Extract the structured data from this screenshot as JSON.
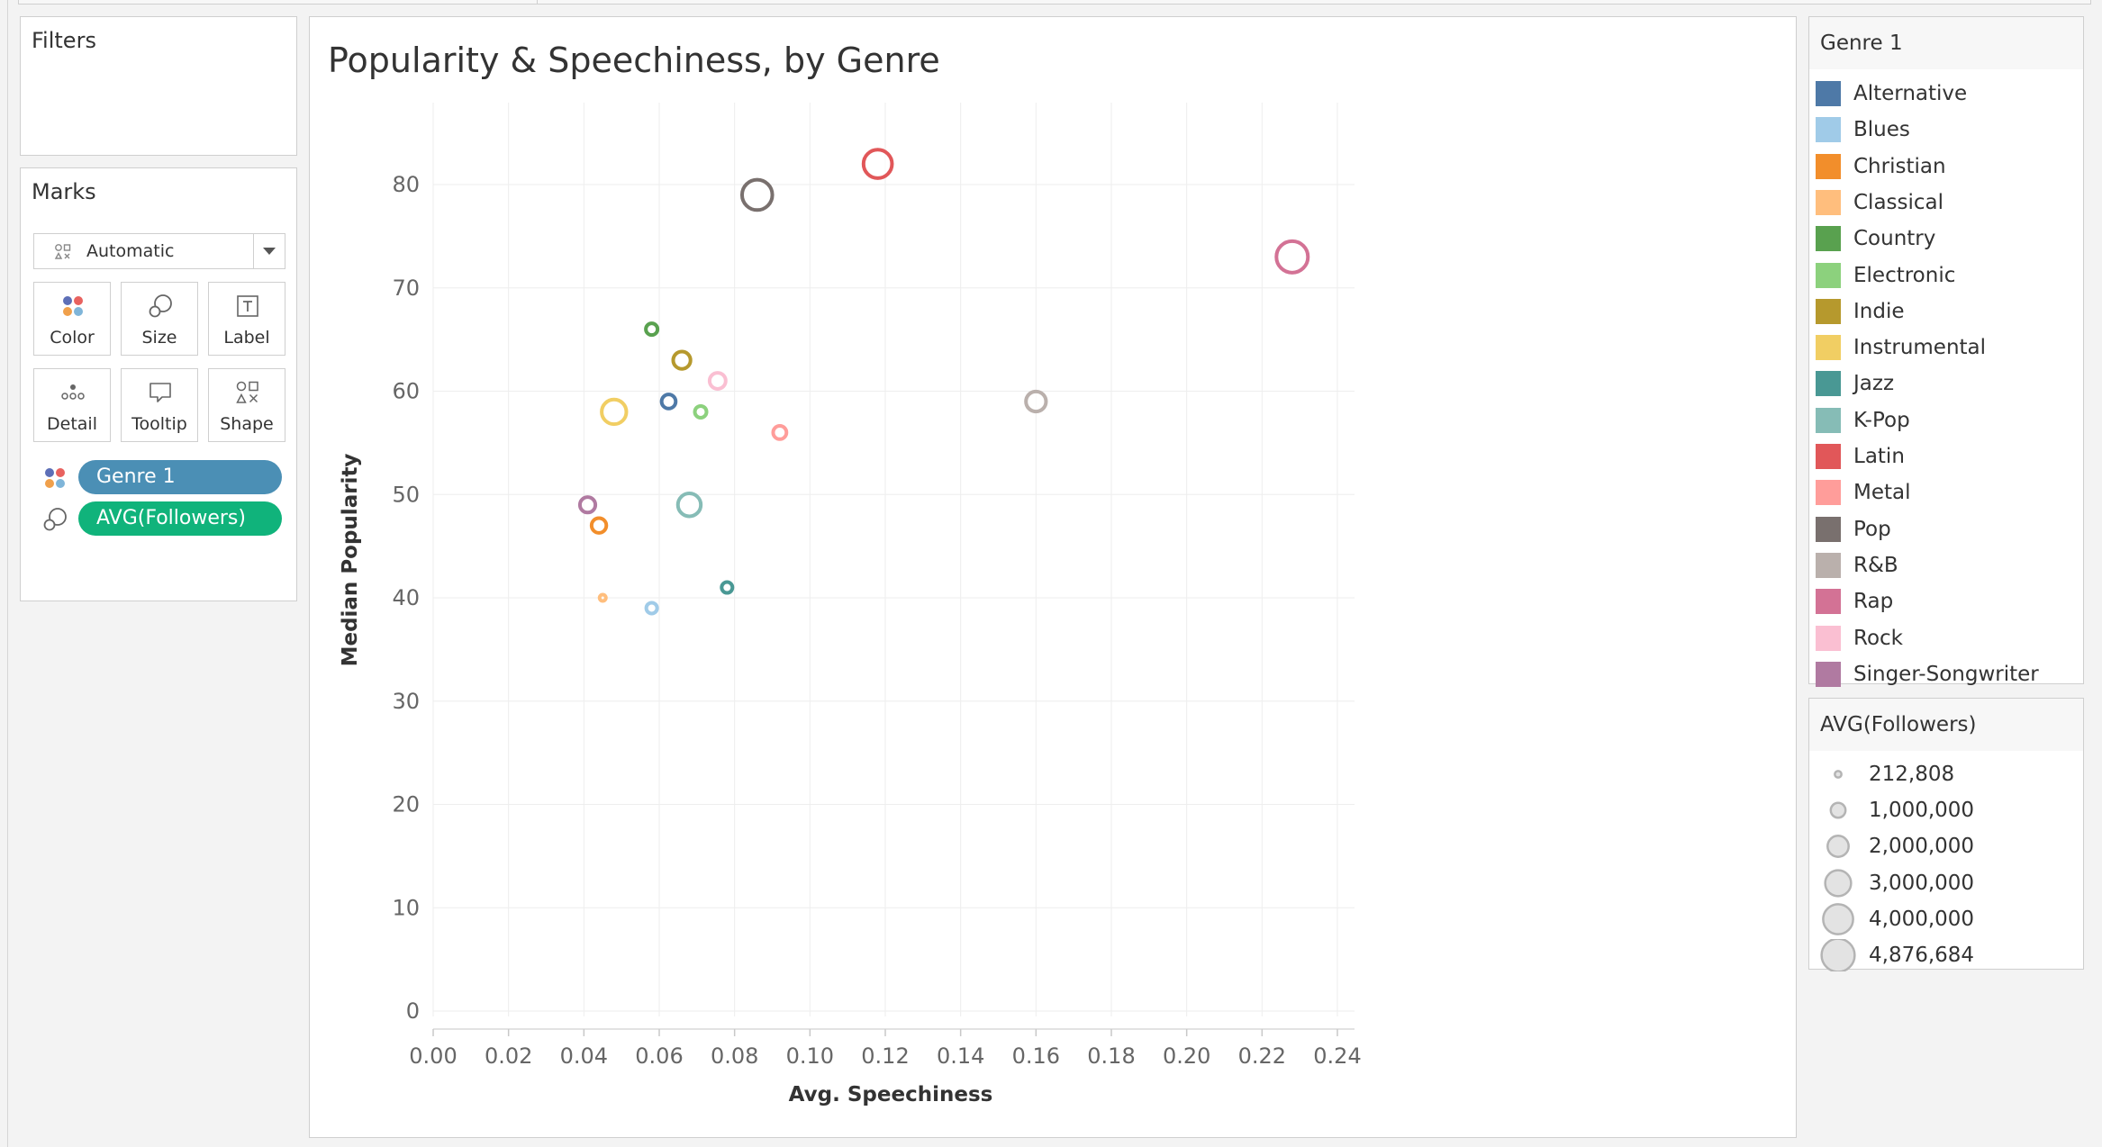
{
  "filters": {
    "title": "Filters"
  },
  "marks": {
    "title": "Marks",
    "mark_type": "Automatic",
    "buttons": [
      {
        "label": "Color",
        "icon": "color-dots-icon"
      },
      {
        "label": "Size",
        "icon": "size-circles-icon"
      },
      {
        "label": "Label",
        "icon": "label-text-icon"
      },
      {
        "label": "Detail",
        "icon": "detail-dots-icon"
      },
      {
        "label": "Tooltip",
        "icon": "tooltip-bubble-icon"
      },
      {
        "label": "Shape",
        "icon": "shape-icon"
      }
    ],
    "pills": [
      {
        "label": "Genre 1",
        "color": "#4b8fb5",
        "icon": "color-dots-icon"
      },
      {
        "label": "AVG(Followers)",
        "color": "#10b37b",
        "icon": "size-circles-icon"
      }
    ]
  },
  "chart_data": {
    "type": "scatter",
    "title": "Popularity & Speechiness, by Genre",
    "xlabel": "Avg. Speechiness",
    "ylabel": "Median Popularity",
    "xlim": [
      0,
      0.24
    ],
    "ylim": [
      0,
      85
    ],
    "x_ticks": [
      "0.00",
      "0.02",
      "0.04",
      "0.06",
      "0.08",
      "0.10",
      "0.12",
      "0.14",
      "0.16",
      "0.18",
      "0.20",
      "0.22",
      "0.24"
    ],
    "y_ticks": [
      "0",
      "10",
      "20",
      "30",
      "40",
      "50",
      "60",
      "70",
      "80"
    ],
    "grid": true,
    "points": [
      {
        "genre": "Alternative",
        "x": 0.0625,
        "y": 59,
        "followers": 1000000,
        "color": "#4e79a7"
      },
      {
        "genre": "Blues",
        "x": 0.058,
        "y": 39,
        "followers": 600000,
        "color": "#a0cbe8"
      },
      {
        "genre": "Christian",
        "x": 0.044,
        "y": 47,
        "followers": 1100000,
        "color": "#f28e2b"
      },
      {
        "genre": "Classical",
        "x": 0.045,
        "y": 40,
        "followers": 212808,
        "color": "#ffbe7d"
      },
      {
        "genre": "Country",
        "x": 0.058,
        "y": 66,
        "followers": 700000,
        "color": "#59a14f"
      },
      {
        "genre": "Electronic",
        "x": 0.071,
        "y": 58,
        "followers": 700000,
        "color": "#8cd17d"
      },
      {
        "genre": "Indie",
        "x": 0.066,
        "y": 63,
        "followers": 1500000,
        "color": "#b6992d"
      },
      {
        "genre": "Instrumental",
        "x": 0.048,
        "y": 58,
        "followers": 3000000,
        "color": "#f1ce63"
      },
      {
        "genre": "Jazz",
        "x": 0.078,
        "y": 41,
        "followers": 600000,
        "color": "#499894"
      },
      {
        "genre": "K-Pop",
        "x": 0.068,
        "y": 49,
        "followers": 2600000,
        "color": "#86bcb6"
      },
      {
        "genre": "Latin",
        "x": 0.118,
        "y": 82,
        "followers": 4000000,
        "color": "#e15759"
      },
      {
        "genre": "Metal",
        "x": 0.092,
        "y": 56,
        "followers": 900000,
        "color": "#ff9d9a"
      },
      {
        "genre": "Pop",
        "x": 0.086,
        "y": 79,
        "followers": 4500000,
        "color": "#79706e"
      },
      {
        "genre": "R&B",
        "x": 0.16,
        "y": 59,
        "followers": 2000000,
        "color": "#bab0ac"
      },
      {
        "genre": "Rap",
        "x": 0.228,
        "y": 73,
        "followers": 4876684,
        "color": "#d37295"
      },
      {
        "genre": "Rock",
        "x": 0.0755,
        "y": 61,
        "followers": 1300000,
        "color": "#fabfd2"
      },
      {
        "genre": "Singer-Songwriter",
        "x": 0.041,
        "y": 49,
        "followers": 1200000,
        "color": "#b07aa1"
      }
    ]
  },
  "genre_legend": {
    "title": "Genre 1",
    "items": [
      {
        "label": "Alternative",
        "color": "#4e79a7"
      },
      {
        "label": "Blues",
        "color": "#a0cbe8"
      },
      {
        "label": "Christian",
        "color": "#f28e2b"
      },
      {
        "label": "Classical",
        "color": "#ffbe7d"
      },
      {
        "label": "Country",
        "color": "#59a14f"
      },
      {
        "label": "Electronic",
        "color": "#8cd17d"
      },
      {
        "label": "Indie",
        "color": "#b6992d"
      },
      {
        "label": "Instrumental",
        "color": "#f1ce63"
      },
      {
        "label": "Jazz",
        "color": "#499894"
      },
      {
        "label": "K-Pop",
        "color": "#86bcb6"
      },
      {
        "label": "Latin",
        "color": "#e15759"
      },
      {
        "label": "Metal",
        "color": "#ff9d9a"
      },
      {
        "label": "Pop",
        "color": "#79706e"
      },
      {
        "label": "R&B",
        "color": "#bab0ac"
      },
      {
        "label": "Rap",
        "color": "#d37295"
      },
      {
        "label": "Rock",
        "color": "#fabfd2"
      },
      {
        "label": "Singer-Songwriter",
        "color": "#b07aa1"
      }
    ]
  },
  "followers_legend": {
    "title": "AVG(Followers)",
    "items": [
      {
        "label": "212,808",
        "value": 212808
      },
      {
        "label": "1,000,000",
        "value": 1000000
      },
      {
        "label": "2,000,000",
        "value": 2000000
      },
      {
        "label": "3,000,000",
        "value": 3000000
      },
      {
        "label": "4,000,000",
        "value": 4000000
      },
      {
        "label": "4,876,684",
        "value": 4876684
      }
    ]
  }
}
